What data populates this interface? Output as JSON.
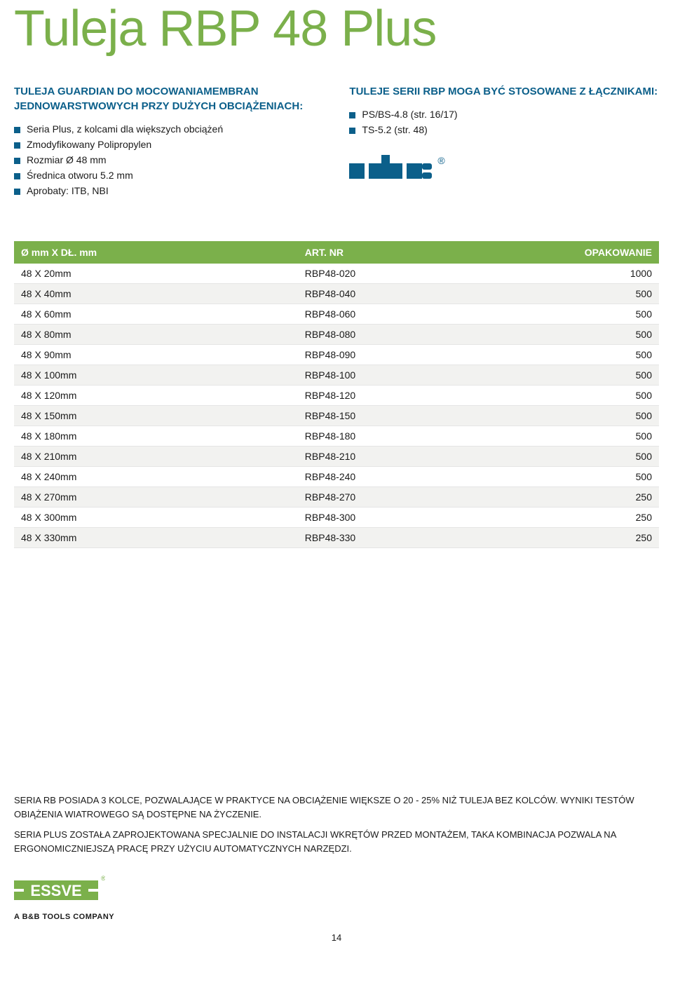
{
  "title": "Tuleja RBP 48 Plus",
  "left": {
    "heading": "TULEJA GUARDIAN DO MOCOWANIAMEMBRAN JEDNOWARSTWOWYCH PRZY DUŻYCH OBCIĄŻENIACH:",
    "items": [
      "Seria Plus, z kolcami dla większych obciążeń",
      "Zmodyfikowany Polipropylen",
      "Rozmiar Ø 48 mm",
      "Średnica otworu 5.2 mm",
      "Aprobaty: ITB, NBI"
    ]
  },
  "right": {
    "heading": "TULEJE SERII RBP MOGA BYĆ STOSOWANE Z ŁĄCZNIKAMI:",
    "items": [
      "PS/BS-4.8 (str. 16/17)",
      "TS-5.2 (str. 48)"
    ]
  },
  "table": {
    "headers": [
      "Ø mm X DŁ. mm",
      "ART. NR",
      "OPAKOWANIE"
    ],
    "rows": [
      [
        "48 X 20mm",
        "RBP48-020",
        "1000"
      ],
      [
        "48 X 40mm",
        "RBP48-040",
        "500"
      ],
      [
        "48 X 60mm",
        "RBP48-060",
        "500"
      ],
      [
        "48 X 80mm",
        "RBP48-080",
        "500"
      ],
      [
        "48 X 90mm",
        "RBP48-090",
        "500"
      ],
      [
        "48 X 100mm",
        "RBP48-100",
        "500"
      ],
      [
        "48 X 120mm",
        "RBP48-120",
        "500"
      ],
      [
        "48 X 150mm",
        "RBP48-150",
        "500"
      ],
      [
        "48 X 180mm",
        "RBP48-180",
        "500"
      ],
      [
        "48 X 210mm",
        "RBP48-210",
        "500"
      ],
      [
        "48 X 240mm",
        "RBP48-240",
        "500"
      ],
      [
        "48 X 270mm",
        "RBP48-270",
        "250"
      ],
      [
        "48 X 300mm",
        "RBP48-300",
        "250"
      ],
      [
        "48 X 330mm",
        "RBP48-330",
        "250"
      ]
    ]
  },
  "notes": {
    "p1": "SERIA RB POSIADA 3 KOLCE, POZWALAJĄCE W PRAKTYCE NA OBCIĄŻENIE WIĘKSZE O 20 - 25% NIŻ TULEJA BEZ KOLCÓW. WYNIKI TESTÓW OBIĄŻENIA WIATROWEGO SĄ DOSTĘPNE NA ŻYCZENIE.",
    "p2": "SERIA PLUS ZOSTAŁA ZAPROJEKTOWANA SPECJALNIE DO INSTALACJI WKRĘTÓW PRZED MONTAŻEM, TAKA KOMBINACJA POZWALA NA ERGONOMICZNIEJSZĄ PRACĘ PRZY UŻYCIU AUTOMATYCZNYCH NARZĘDZI."
  },
  "essve_tag": "A B&B TOOLS COMPANY",
  "page_number": "14",
  "colors": {
    "green": "#7bb04b",
    "blue": "#0b5f8a",
    "text": "#1a1a1a",
    "row_alt": "#f2f2f0"
  }
}
